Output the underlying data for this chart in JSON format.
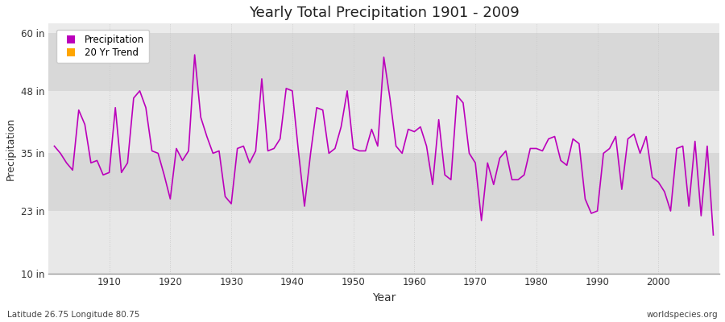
{
  "title": "Yearly Total Precipitation 1901 - 2009",
  "xlabel": "Year",
  "ylabel": "Precipitation",
  "subtitle_left": "Latitude 26.75 Longitude 80.75",
  "subtitle_right": "worldspecies.org",
  "ylim": [
    10,
    62
  ],
  "yticks": [
    10,
    23,
    35,
    48,
    60
  ],
  "ytick_labels": [
    "10 in",
    "23 in",
    "35 in",
    "48 in",
    "60 in"
  ],
  "xlim": [
    1900,
    2010
  ],
  "xticks": [
    1910,
    1920,
    1930,
    1940,
    1950,
    1960,
    1970,
    1980,
    1990,
    2000
  ],
  "line_color": "#BB00BB",
  "bg_outer": "#FFFFFF",
  "bg_inner_light": "#F0F0F0",
  "bg_inner_dark": "#E0E0E0",
  "legend_entries": [
    "Precipitation",
    "20 Yr Trend"
  ],
  "legend_colors": [
    "#BB00BB",
    "#FFA500"
  ],
  "years": [
    1901,
    1902,
    1903,
    1904,
    1905,
    1906,
    1907,
    1908,
    1909,
    1910,
    1911,
    1912,
    1913,
    1914,
    1915,
    1916,
    1917,
    1918,
    1919,
    1920,
    1921,
    1922,
    1923,
    1924,
    1925,
    1926,
    1927,
    1928,
    1929,
    1930,
    1931,
    1932,
    1933,
    1934,
    1935,
    1936,
    1937,
    1938,
    1939,
    1940,
    1941,
    1942,
    1943,
    1944,
    1945,
    1946,
    1947,
    1948,
    1949,
    1950,
    1951,
    1952,
    1953,
    1954,
    1955,
    1956,
    1957,
    1958,
    1959,
    1960,
    1961,
    1962,
    1963,
    1964,
    1965,
    1966,
    1967,
    1968,
    1969,
    1970,
    1971,
    1972,
    1973,
    1974,
    1975,
    1976,
    1977,
    1978,
    1979,
    1980,
    1981,
    1982,
    1983,
    1984,
    1985,
    1986,
    1987,
    1988,
    1989,
    1990,
    1991,
    1992,
    1993,
    1994,
    1995,
    1996,
    1997,
    1998,
    1999,
    2000,
    2001,
    2002,
    2003,
    2004,
    2005,
    2006,
    2007,
    2008,
    2009
  ],
  "values": [
    36.5,
    35.0,
    33.0,
    31.5,
    44.0,
    41.0,
    33.0,
    33.5,
    30.5,
    31.0,
    44.5,
    31.0,
    33.0,
    46.5,
    48.0,
    44.5,
    35.5,
    35.0,
    30.5,
    25.5,
    36.0,
    33.5,
    35.5,
    55.5,
    42.5,
    38.5,
    35.0,
    35.5,
    26.0,
    24.5,
    36.0,
    36.5,
    33.0,
    35.5,
    50.5,
    35.5,
    36.0,
    38.0,
    48.5,
    48.0,
    35.5,
    24.0,
    35.0,
    44.5,
    44.0,
    35.0,
    36.0,
    40.5,
    48.0,
    36.0,
    35.5,
    35.5,
    40.0,
    36.5,
    55.0,
    46.5,
    36.5,
    35.0,
    40.0,
    39.5,
    40.5,
    36.5,
    28.5,
    42.0,
    30.5,
    29.5,
    47.0,
    45.5,
    35.0,
    33.0,
    21.0,
    33.0,
    28.5,
    34.0,
    35.5,
    29.5,
    29.5,
    30.5,
    36.0,
    36.0,
    35.5,
    38.0,
    38.5,
    33.5,
    32.5,
    38.0,
    37.0,
    25.5,
    22.5,
    23.0,
    35.0,
    36.0,
    38.5,
    27.5,
    38.0,
    39.0,
    35.0,
    38.5,
    30.0,
    29.0,
    27.0,
    23.0,
    36.0,
    36.5,
    24.0,
    37.5,
    22.0,
    36.5,
    18.0
  ]
}
